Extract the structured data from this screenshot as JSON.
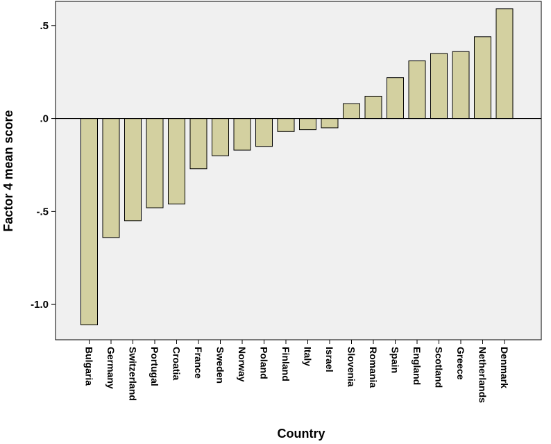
{
  "chart_data": {
    "type": "bar",
    "xlabel": "Country",
    "ylabel": "Factor 4 mean score",
    "ylim": [
      -1.19,
      0.63
    ],
    "grid": false,
    "legend": "none",
    "bar_color": "#d3d0a0",
    "plot_background": "#f0f0f0",
    "yticks": [
      {
        "value": 0.5,
        "label": ".5"
      },
      {
        "value": 0.0,
        "label": ".0"
      },
      {
        "value": -0.5,
        "label": "-.5"
      },
      {
        "value": -1.0,
        "label": "-1.0"
      }
    ],
    "categories": [
      "Bulgaria",
      "Germany",
      "Switzerland",
      "Portugal",
      "Croatia",
      "France",
      "Sweden",
      "Norway",
      "Poland",
      "Finland",
      "Italy",
      "Israel",
      "Slovenia",
      "Romania",
      "Spain",
      "England",
      "Scotland",
      "Greece",
      "Netherlands",
      "Denmark"
    ],
    "values": [
      -1.11,
      -0.64,
      -0.55,
      -0.48,
      -0.46,
      -0.27,
      -0.2,
      -0.17,
      -0.15,
      -0.07,
      -0.06,
      -0.05,
      0.08,
      0.12,
      0.22,
      0.31,
      0.35,
      0.36,
      0.44,
      0.59
    ]
  }
}
